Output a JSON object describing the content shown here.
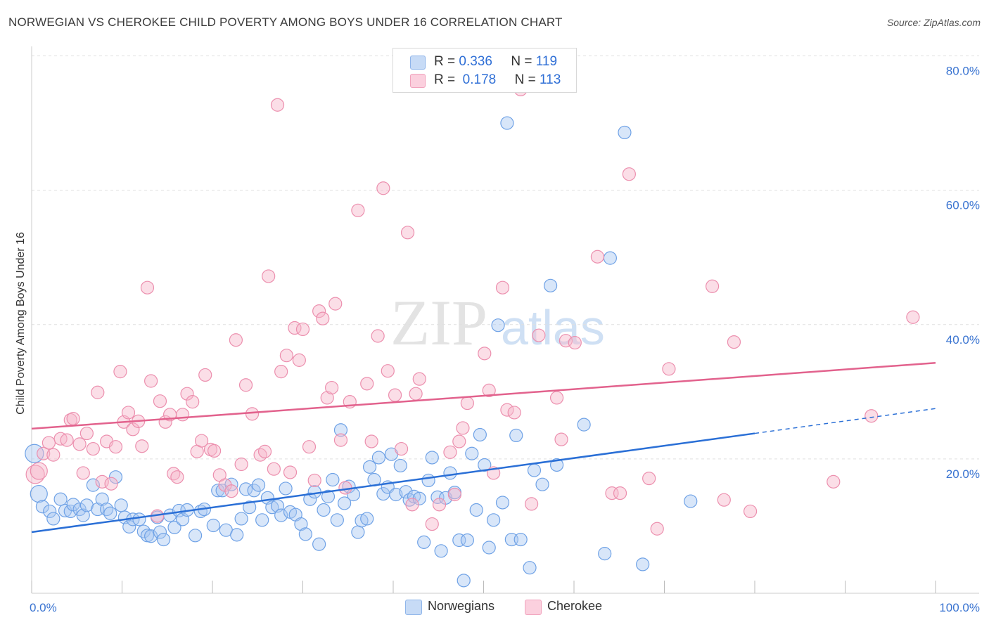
{
  "title": "NORWEGIAN VS CHEROKEE CHILD POVERTY AMONG BOYS UNDER 16 CORRELATION CHART",
  "source": "Source: ZipAtlas.com",
  "watermark": {
    "zip": "ZIP",
    "atlas": "atlas"
  },
  "legend": {
    "rows": [
      {
        "r_label": "R =",
        "r_value": "0.336",
        "n_label": "N =",
        "n_value": "119",
        "color": "#a9c8f2"
      },
      {
        "r_label": "R =",
        "r_value": "0.178",
        "n_label": "N =",
        "n_value": "113",
        "color": "#f7b6ca"
      }
    ]
  },
  "bottom_legend": [
    {
      "label": "Norwegians",
      "color": "#a9c8f2"
    },
    {
      "label": "Cherokee",
      "color": "#f7b6ca"
    }
  ],
  "chart_data": {
    "type": "scatter",
    "title": "NORWEGIAN VS CHEROKEE CHILD POVERTY AMONG BOYS UNDER 16 CORRELATION CHART",
    "xlabel": "",
    "ylabel": "Child Poverty Among Boys Under 16",
    "xlim": [
      0,
      100
    ],
    "ylim": [
      0,
      80
    ],
    "x_tick_labels": [
      "0.0%",
      "100.0%"
    ],
    "y_tick_labels": [
      "20.0%",
      "40.0%",
      "60.0%",
      "80.0%"
    ],
    "y_ticks": [
      20,
      40,
      60,
      80
    ],
    "grid": true,
    "legend_position": "top-center",
    "series": [
      {
        "name": "Norwegians",
        "color": "#6fa2e6",
        "fill": "#a9c8f2",
        "trend": {
          "x0": 0,
          "y0": 9.1,
          "x1": 80,
          "y1": 23.8,
          "dash_to": 100,
          "dash_y": 27.5,
          "color": "#2a6fd6"
        },
        "points": [
          [
            0.3,
            20.8
          ],
          [
            0.8,
            14.8
          ],
          [
            1.2,
            12.9
          ],
          [
            2,
            12.2
          ],
          [
            2.4,
            11.1
          ],
          [
            3.2,
            14
          ],
          [
            3.7,
            12.3
          ],
          [
            4.3,
            12.2
          ],
          [
            4.6,
            13.2
          ],
          [
            5.3,
            12.5
          ],
          [
            5.7,
            11.6
          ],
          [
            6.1,
            13.1
          ],
          [
            6.8,
            16.1
          ],
          [
            7.3,
            12.5
          ],
          [
            7.8,
            14
          ],
          [
            8.3,
            12.5
          ],
          [
            8.7,
            11.9
          ],
          [
            9.3,
            17.3
          ],
          [
            9.9,
            13.1
          ],
          [
            10.3,
            11.3
          ],
          [
            10.8,
            9.9
          ],
          [
            11.2,
            11
          ],
          [
            11.9,
            11
          ],
          [
            12.4,
            9.2
          ],
          [
            12.8,
            8.6
          ],
          [
            13.2,
            8.5
          ],
          [
            13.9,
            11.3
          ],
          [
            14.2,
            9.1
          ],
          [
            14.6,
            8
          ],
          [
            15.3,
            11.6
          ],
          [
            15.8,
            9.8
          ],
          [
            16.3,
            12.3
          ],
          [
            16.7,
            11
          ],
          [
            17.2,
            12.4
          ],
          [
            18.1,
            8.6
          ],
          [
            18.7,
            12.2
          ],
          [
            19.1,
            12.5
          ],
          [
            20.1,
            10.1
          ],
          [
            20.6,
            15.3
          ],
          [
            21.1,
            15.3
          ],
          [
            21.5,
            9.4
          ],
          [
            22.1,
            16.2
          ],
          [
            22.7,
            8.7
          ],
          [
            23.2,
            11.1
          ],
          [
            23.7,
            15.5
          ],
          [
            24.1,
            12.8
          ],
          [
            24.6,
            15.3
          ],
          [
            25.1,
            16.1
          ],
          [
            25.5,
            10.9
          ],
          [
            26.1,
            14.2
          ],
          [
            26.6,
            12.8
          ],
          [
            27.2,
            13
          ],
          [
            27.6,
            11.6
          ],
          [
            28.1,
            15.6
          ],
          [
            28.6,
            12.1
          ],
          [
            29.2,
            11.7
          ],
          [
            29.8,
            10.3
          ],
          [
            30.3,
            8.8
          ],
          [
            30.8,
            14
          ],
          [
            31.3,
            15.1
          ],
          [
            31.8,
            7.3
          ],
          [
            32.3,
            12.4
          ],
          [
            32.8,
            14.4
          ],
          [
            33.3,
            16.9
          ],
          [
            33.8,
            10.9
          ],
          [
            34.2,
            24.3
          ],
          [
            34.6,
            13.4
          ],
          [
            35.1,
            15.9
          ],
          [
            35.6,
            14.7
          ],
          [
            36.1,
            9.1
          ],
          [
            36.5,
            10.8
          ],
          [
            37.1,
            11.1
          ],
          [
            37.4,
            18.8
          ],
          [
            37.9,
            16.9
          ],
          [
            38.4,
            20.2
          ],
          [
            38.9,
            14.8
          ],
          [
            39.4,
            15.8
          ],
          [
            39.8,
            20.7
          ],
          [
            40.3,
            14.7
          ],
          [
            40.8,
            19
          ],
          [
            41.4,
            15.1
          ],
          [
            41.8,
            13.9
          ],
          [
            42.3,
            14.4
          ],
          [
            42.9,
            14.1
          ],
          [
            43.4,
            7.6
          ],
          [
            43.9,
            16.8
          ],
          [
            44.3,
            20.2
          ],
          [
            44.9,
            14.3
          ],
          [
            45.3,
            6.3
          ],
          [
            45.8,
            14.2
          ],
          [
            46.3,
            17.9
          ],
          [
            46.8,
            15
          ],
          [
            47.3,
            7.9
          ],
          [
            47.8,
            1.9
          ],
          [
            48.2,
            7.9
          ],
          [
            48.7,
            20.8
          ],
          [
            49.2,
            12.4
          ],
          [
            49.6,
            23.6
          ],
          [
            50.1,
            19.1
          ],
          [
            50.6,
            6.8
          ],
          [
            51.1,
            10.9
          ],
          [
            51.6,
            39.9
          ],
          [
            52.1,
            13.5
          ],
          [
            52.6,
            70
          ],
          [
            53.1,
            8
          ],
          [
            53.6,
            23.5
          ],
          [
            54.1,
            8
          ],
          [
            55.1,
            3.8
          ],
          [
            55.6,
            18.3
          ],
          [
            56.5,
            16.2
          ],
          [
            57.4,
            45.8
          ],
          [
            58.1,
            19.1
          ],
          [
            61.1,
            25.1
          ],
          [
            63.4,
            5.9
          ],
          [
            64,
            49.9
          ],
          [
            65.6,
            68.6
          ],
          [
            67.6,
            4.3
          ],
          [
            72.9,
            13.7
          ]
        ]
      },
      {
        "name": "Cherokee",
        "color": "#ec8fae",
        "fill": "#f7b6ca",
        "trend": {
          "x0": 0,
          "y0": 24.5,
          "x1": 100,
          "y1": 34.3,
          "color": "#e2628d"
        },
        "points": [
          [
            0.4,
            17.7
          ],
          [
            0.8,
            18.2
          ],
          [
            1.3,
            20.8
          ],
          [
            1.9,
            22.4
          ],
          [
            2.4,
            20.6
          ],
          [
            3.2,
            23
          ],
          [
            3.9,
            22.8
          ],
          [
            4.3,
            25.8
          ],
          [
            4.6,
            26
          ],
          [
            5.3,
            22.2
          ],
          [
            5.7,
            17.9
          ],
          [
            6.1,
            23.8
          ],
          [
            6.8,
            21.5
          ],
          [
            7.3,
            29.9
          ],
          [
            7.8,
            16.6
          ],
          [
            8.3,
            22.6
          ],
          [
            8.8,
            16.3
          ],
          [
            9.3,
            21.8
          ],
          [
            9.8,
            33
          ],
          [
            10.2,
            25.5
          ],
          [
            10.7,
            26.9
          ],
          [
            11.2,
            24.4
          ],
          [
            11.8,
            25.6
          ],
          [
            12.2,
            21.9
          ],
          [
            12.8,
            45.5
          ],
          [
            13.2,
            31.6
          ],
          [
            13.9,
            11.5
          ],
          [
            14.2,
            28.6
          ],
          [
            14.8,
            25.5
          ],
          [
            15.3,
            26.6
          ],
          [
            15.7,
            17.8
          ],
          [
            16.1,
            17.3
          ],
          [
            16.7,
            26.6
          ],
          [
            17.2,
            29.7
          ],
          [
            17.8,
            28.5
          ],
          [
            18.3,
            21.1
          ],
          [
            18.8,
            22.7
          ],
          [
            19.2,
            32.5
          ],
          [
            19.8,
            21.4
          ],
          [
            20.2,
            21.2
          ],
          [
            20.8,
            17.6
          ],
          [
            21.4,
            16.1
          ],
          [
            22.1,
            15.2
          ],
          [
            22.6,
            37.7
          ],
          [
            23.2,
            19.2
          ],
          [
            23.7,
            31
          ],
          [
            24.4,
            26.7
          ],
          [
            25.3,
            20.6
          ],
          [
            25.8,
            21.1
          ],
          [
            26.2,
            47.2
          ],
          [
            26.8,
            18.5
          ],
          [
            27.2,
            72.7
          ],
          [
            27.6,
            33
          ],
          [
            28.2,
            35.4
          ],
          [
            28.6,
            18
          ],
          [
            29.1,
            39.5
          ],
          [
            29.6,
            34.7
          ],
          [
            30,
            39.3
          ],
          [
            30.7,
            21.8
          ],
          [
            31.3,
            16.8
          ],
          [
            31.8,
            42
          ],
          [
            32.2,
            40.9
          ],
          [
            32.7,
            29.1
          ],
          [
            33.2,
            30.6
          ],
          [
            33.6,
            43.1
          ],
          [
            34.2,
            22.8
          ],
          [
            34.7,
            15.7
          ],
          [
            35.2,
            28.5
          ],
          [
            36.1,
            57
          ],
          [
            37.1,
            31.2
          ],
          [
            37.6,
            22.6
          ],
          [
            38.3,
            38.3
          ],
          [
            38.9,
            60.3
          ],
          [
            39.4,
            33.1
          ],
          [
            40.2,
            29.5
          ],
          [
            40.9,
            21.5
          ],
          [
            41.6,
            53.7
          ],
          [
            42.1,
            13.2
          ],
          [
            42.5,
            29.7
          ],
          [
            42.9,
            31.9
          ],
          [
            44.3,
            10.3
          ],
          [
            45.1,
            13.2
          ],
          [
            46.3,
            21
          ],
          [
            46.8,
            14.7
          ],
          [
            47.3,
            22.6
          ],
          [
            47.7,
            24.6
          ],
          [
            48.2,
            28.3
          ],
          [
            50.1,
            35.7
          ],
          [
            50.6,
            30.2
          ],
          [
            51.1,
            17.9
          ],
          [
            52.1,
            45.5
          ],
          [
            52.6,
            27.3
          ],
          [
            53.4,
            26.9
          ],
          [
            54.1,
            75
          ],
          [
            55.3,
            13.3
          ],
          [
            56.1,
            38.4
          ],
          [
            58.1,
            29.1
          ],
          [
            58.6,
            22.9
          ],
          [
            59.1,
            37.6
          ],
          [
            60.1,
            37.3
          ],
          [
            62.6,
            50.1
          ],
          [
            64.2,
            14.9
          ],
          [
            65.1,
            14.9
          ],
          [
            66.1,
            62.4
          ],
          [
            68.3,
            17.1
          ],
          [
            69.2,
            9.6
          ],
          [
            70.5,
            33.4
          ],
          [
            75.3,
            45.7
          ],
          [
            76.6,
            13.9
          ],
          [
            77.7,
            37.4
          ],
          [
            79.5,
            12.2
          ],
          [
            88.7,
            16.6
          ],
          [
            92.9,
            26.4
          ],
          [
            97.5,
            41.1
          ]
        ]
      }
    ]
  }
}
